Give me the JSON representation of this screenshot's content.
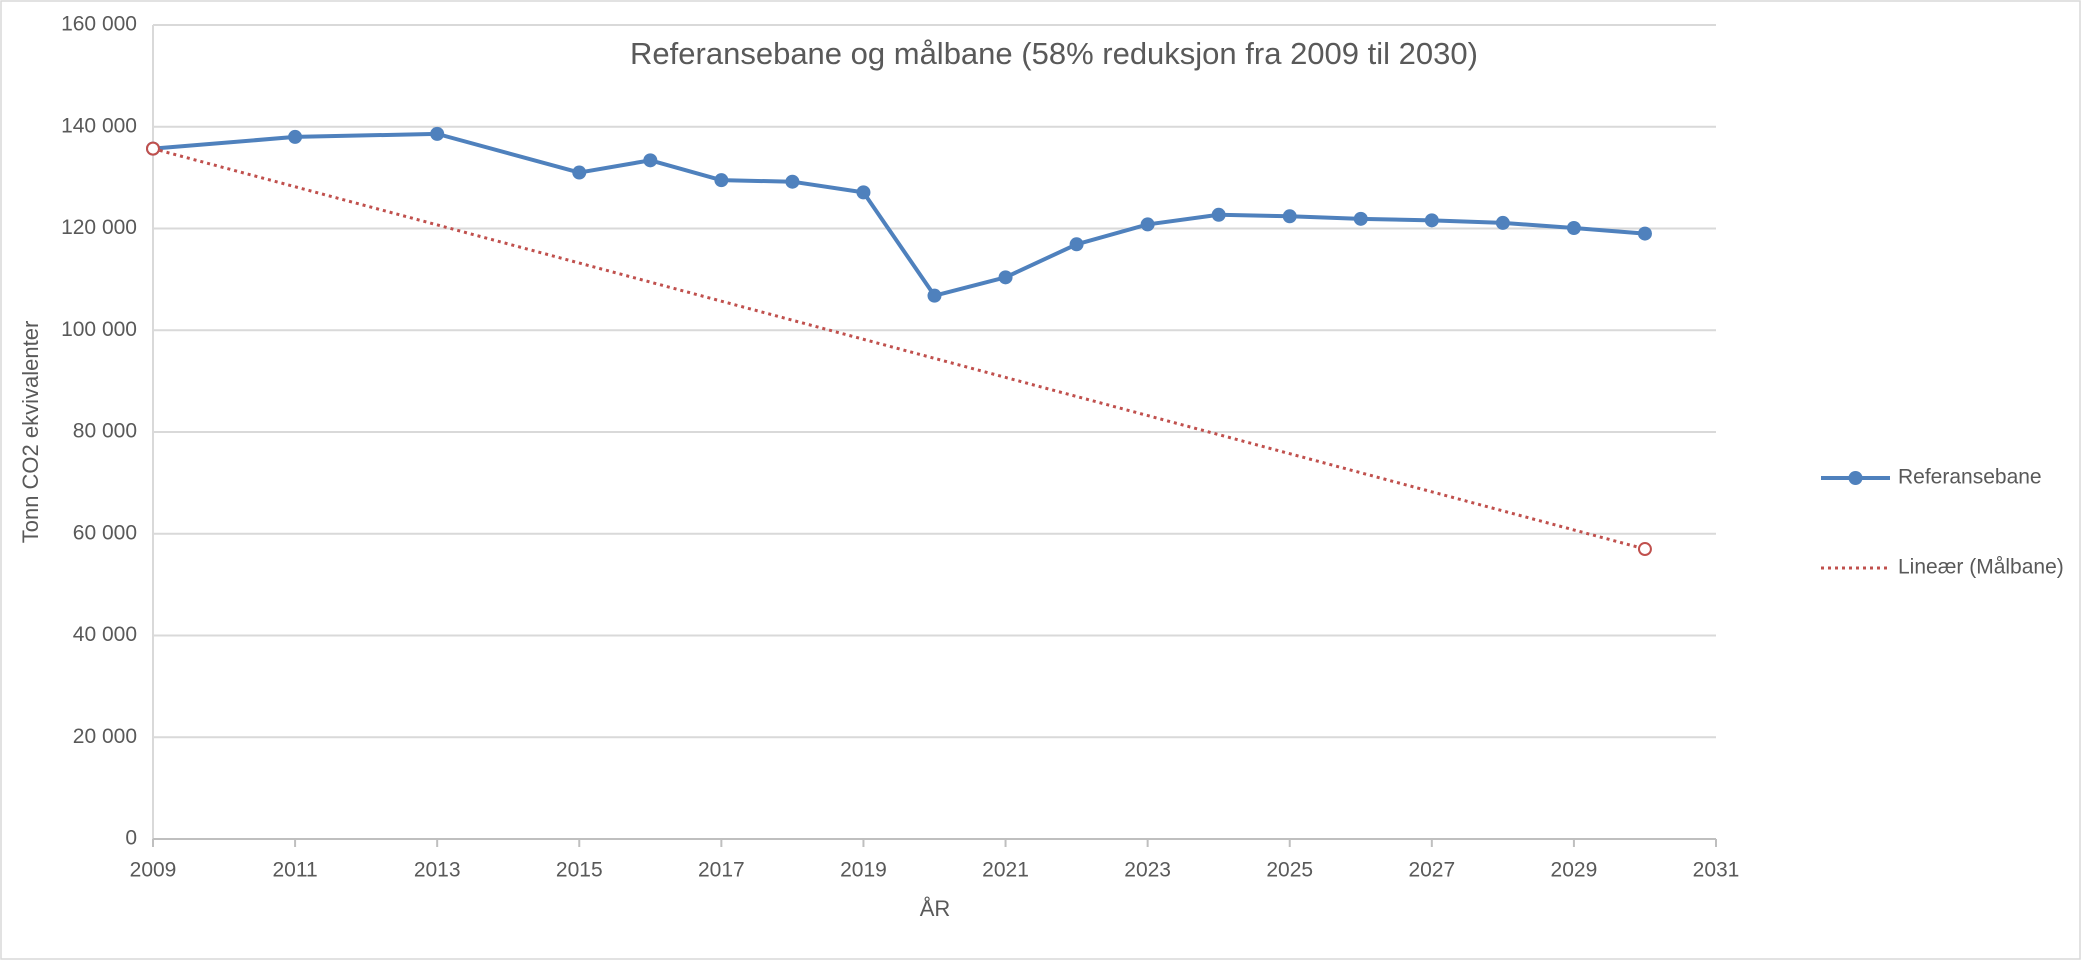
{
  "chart_data": {
    "type": "line",
    "title": "Referansebane og målbane (58% reduksjon fra 2009 til 2030)",
    "xlabel": "ÅR",
    "ylabel": "Tonn CO2 ekvivalenter",
    "xlim": [
      2009,
      2031
    ],
    "xticks": [
      2009,
      2011,
      2013,
      2015,
      2017,
      2019,
      2021,
      2023,
      2025,
      2027,
      2029,
      2031
    ],
    "ylim": [
      0,
      160000
    ],
    "yticks": [
      0,
      {
        "value": 20000,
        "label": "20 000"
      },
      {
        "value": 40000,
        "label": "40 000"
      },
      {
        "value": 60000,
        "label": "60 000"
      },
      {
        "value": 80000,
        "label": "80 000"
      },
      {
        "value": 100000,
        "label": "100 000"
      },
      {
        "value": 120000,
        "label": "120 000"
      },
      {
        "value": 140000,
        "label": "140 000"
      },
      {
        "value": 160000,
        "label": "160 000"
      }
    ],
    "grid": true,
    "legend": "right",
    "series": [
      {
        "name": "Referansebane",
        "color": "#4f81bd",
        "line_style": "solid",
        "x": [
          2009,
          2011,
          2013,
          2015,
          2016,
          2017,
          2018,
          2019,
          2020,
          2021,
          2022,
          2023,
          2024,
          2025,
          2026,
          2027,
          2028,
          2029,
          2030
        ],
        "values": [
          135700,
          138000,
          138600,
          131000,
          133400,
          129500,
          129200,
          127100,
          106800,
          110400,
          116900,
          120800,
          122700,
          122400,
          121900,
          121600,
          121100,
          120100,
          119000
        ]
      },
      {
        "name": "Lineær (Målbane)",
        "color": "#c0504d",
        "line_style": "dotted",
        "x": [
          2009,
          2030
        ],
        "values": [
          135700,
          57000
        ]
      }
    ]
  }
}
